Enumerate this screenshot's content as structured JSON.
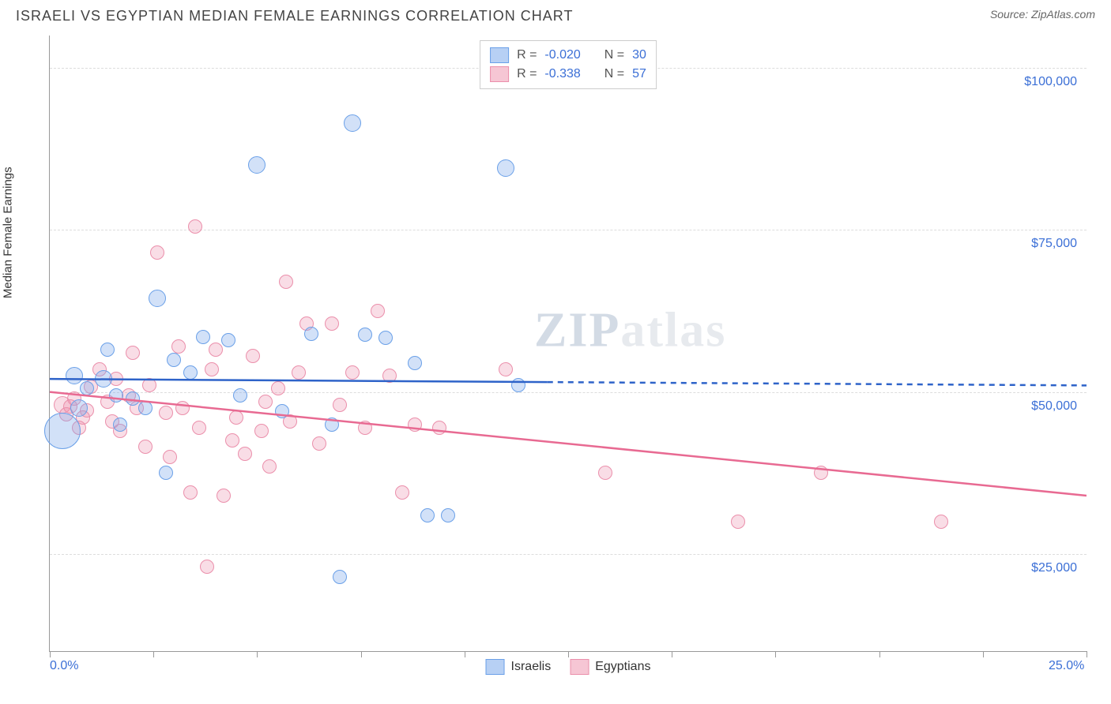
{
  "header": {
    "title": "ISRAELI VS EGYPTIAN MEDIAN FEMALE EARNINGS CORRELATION CHART",
    "source_prefix": "Source: ",
    "source_name": "ZipAtlas.com"
  },
  "chart": {
    "type": "scatter",
    "ylabel": "Median Female Earnings",
    "xlim": [
      0,
      25
    ],
    "ylim": [
      10000,
      105000
    ],
    "x_tick_positions": [
      0,
      2.5,
      5,
      7.5,
      10,
      12.5,
      15,
      17.5,
      20,
      22.5,
      25
    ],
    "x_tick_labels_shown": {
      "0": "0.0%",
      "25": "25.0%"
    },
    "y_grid": [
      25000,
      50000,
      75000,
      100000
    ],
    "y_grid_labels": [
      "$25,000",
      "$50,000",
      "$75,000",
      "$100,000"
    ],
    "grid_color": "#dddddd",
    "axis_color": "#999999",
    "background_color": "#ffffff",
    "label_fontsize": 15,
    "tick_fontsize": 16,
    "tick_color": "#3b6fd6",
    "watermark": {
      "zip": "ZIP",
      "atlas": "atlas"
    },
    "legend_top": {
      "series": [
        {
          "swatch_fill": "#b7d0f4",
          "swatch_stroke": "#6aa0e8",
          "r_label": "R =",
          "r_value": "-0.020",
          "n_label": "N =",
          "n_value": "30"
        },
        {
          "swatch_fill": "#f6c6d4",
          "swatch_stroke": "#eb8fab",
          "r_label": "R =",
          "r_value": "-0.338",
          "n_label": "N =",
          "n_value": "57"
        }
      ]
    },
    "legend_bottom": [
      {
        "swatch_fill": "#b7d0f4",
        "swatch_stroke": "#6aa0e8",
        "label": "Israelis"
      },
      {
        "swatch_fill": "#f6c6d4",
        "swatch_stroke": "#eb8fab",
        "label": "Egyptians"
      }
    ],
    "series": {
      "israelis": {
        "marker_fill": "rgba(125,170,235,0.35)",
        "marker_stroke": "#6aa0e8",
        "line_color": "#2e63c9",
        "line_width": 2.5,
        "line_dash_after_x": 12,
        "trend": {
          "y_at_xmin": 52000,
          "y_at_xmax": 51000
        },
        "points": [
          {
            "x": 0.3,
            "y": 44000,
            "r": 22
          },
          {
            "x": 0.6,
            "y": 52500,
            "r": 10
          },
          {
            "x": 0.7,
            "y": 47500,
            "r": 10
          },
          {
            "x": 0.9,
            "y": 50500,
            "r": 8
          },
          {
            "x": 1.3,
            "y": 52000,
            "r": 10
          },
          {
            "x": 1.4,
            "y": 56500,
            "r": 8
          },
          {
            "x": 1.6,
            "y": 49500,
            "r": 8
          },
          {
            "x": 1.7,
            "y": 45000,
            "r": 8
          },
          {
            "x": 2.0,
            "y": 49000,
            "r": 8
          },
          {
            "x": 2.3,
            "y": 47500,
            "r": 8
          },
          {
            "x": 2.6,
            "y": 64500,
            "r": 10
          },
          {
            "x": 2.8,
            "y": 37500,
            "r": 8
          },
          {
            "x": 3.0,
            "y": 55000,
            "r": 8
          },
          {
            "x": 3.4,
            "y": 53000,
            "r": 8
          },
          {
            "x": 3.7,
            "y": 58500,
            "r": 8
          },
          {
            "x": 4.3,
            "y": 58000,
            "r": 8
          },
          {
            "x": 4.6,
            "y": 49500,
            "r": 8
          },
          {
            "x": 5.0,
            "y": 85000,
            "r": 10
          },
          {
            "x": 5.6,
            "y": 47000,
            "r": 8
          },
          {
            "x": 6.3,
            "y": 59000,
            "r": 8
          },
          {
            "x": 6.8,
            "y": 45000,
            "r": 8
          },
          {
            "x": 7.0,
            "y": 21500,
            "r": 8
          },
          {
            "x": 7.3,
            "y": 91500,
            "r": 10
          },
          {
            "x": 7.6,
            "y": 58800,
            "r": 8
          },
          {
            "x": 8.1,
            "y": 58300,
            "r": 8
          },
          {
            "x": 8.8,
            "y": 54500,
            "r": 8
          },
          {
            "x": 9.1,
            "y": 31000,
            "r": 8
          },
          {
            "x": 9.6,
            "y": 31000,
            "r": 8
          },
          {
            "x": 11.0,
            "y": 84500,
            "r": 10
          },
          {
            "x": 11.3,
            "y": 51000,
            "r": 8
          }
        ]
      },
      "egyptians": {
        "marker_fill": "rgba(235,143,171,0.30)",
        "marker_stroke": "#eb8fab",
        "line_color": "#e86a92",
        "line_width": 2.5,
        "trend": {
          "y_at_xmin": 50000,
          "y_at_xmax": 34000
        },
        "points": [
          {
            "x": 0.3,
            "y": 48000,
            "r": 10
          },
          {
            "x": 0.4,
            "y": 46500,
            "r": 8
          },
          {
            "x": 0.5,
            "y": 47800,
            "r": 8
          },
          {
            "x": 0.6,
            "y": 49000,
            "r": 8
          },
          {
            "x": 0.7,
            "y": 44500,
            "r": 8
          },
          {
            "x": 0.8,
            "y": 46000,
            "r": 8
          },
          {
            "x": 0.9,
            "y": 47200,
            "r": 8
          },
          {
            "x": 1.0,
            "y": 50800,
            "r": 8
          },
          {
            "x": 1.2,
            "y": 53500,
            "r": 8
          },
          {
            "x": 1.4,
            "y": 48500,
            "r": 8
          },
          {
            "x": 1.5,
            "y": 45500,
            "r": 8
          },
          {
            "x": 1.6,
            "y": 52000,
            "r": 8
          },
          {
            "x": 1.7,
            "y": 44000,
            "r": 8
          },
          {
            "x": 1.9,
            "y": 49500,
            "r": 8
          },
          {
            "x": 2.0,
            "y": 56000,
            "r": 8
          },
          {
            "x": 2.1,
            "y": 47500,
            "r": 8
          },
          {
            "x": 2.3,
            "y": 41500,
            "r": 8
          },
          {
            "x": 2.4,
            "y": 51000,
            "r": 8
          },
          {
            "x": 2.6,
            "y": 71500,
            "r": 8
          },
          {
            "x": 2.8,
            "y": 46800,
            "r": 8
          },
          {
            "x": 2.9,
            "y": 40000,
            "r": 8
          },
          {
            "x": 3.1,
            "y": 57000,
            "r": 8
          },
          {
            "x": 3.2,
            "y": 47500,
            "r": 8
          },
          {
            "x": 3.4,
            "y": 34500,
            "r": 8
          },
          {
            "x": 3.5,
            "y": 75500,
            "r": 8
          },
          {
            "x": 3.6,
            "y": 44500,
            "r": 8
          },
          {
            "x": 3.8,
            "y": 23000,
            "r": 8
          },
          {
            "x": 3.9,
            "y": 53500,
            "r": 8
          },
          {
            "x": 4.0,
            "y": 56500,
            "r": 8
          },
          {
            "x": 4.2,
            "y": 34000,
            "r": 8
          },
          {
            "x": 4.4,
            "y": 42500,
            "r": 8
          },
          {
            "x": 4.5,
            "y": 46000,
            "r": 8
          },
          {
            "x": 4.7,
            "y": 40500,
            "r": 8
          },
          {
            "x": 4.9,
            "y": 55500,
            "r": 8
          },
          {
            "x": 5.1,
            "y": 44000,
            "r": 8
          },
          {
            "x": 5.2,
            "y": 48500,
            "r": 8
          },
          {
            "x": 5.3,
            "y": 38500,
            "r": 8
          },
          {
            "x": 5.5,
            "y": 50500,
            "r": 8
          },
          {
            "x": 5.7,
            "y": 67000,
            "r": 8
          },
          {
            "x": 5.8,
            "y": 45500,
            "r": 8
          },
          {
            "x": 6.0,
            "y": 53000,
            "r": 8
          },
          {
            "x": 6.2,
            "y": 60500,
            "r": 8
          },
          {
            "x": 6.5,
            "y": 42000,
            "r": 8
          },
          {
            "x": 6.8,
            "y": 60500,
            "r": 8
          },
          {
            "x": 7.0,
            "y": 48000,
            "r": 8
          },
          {
            "x": 7.3,
            "y": 53000,
            "r": 8
          },
          {
            "x": 7.6,
            "y": 44500,
            "r": 8
          },
          {
            "x": 7.9,
            "y": 62500,
            "r": 8
          },
          {
            "x": 8.2,
            "y": 52500,
            "r": 8
          },
          {
            "x": 8.5,
            "y": 34500,
            "r": 8
          },
          {
            "x": 8.8,
            "y": 45000,
            "r": 8
          },
          {
            "x": 9.4,
            "y": 44500,
            "r": 8
          },
          {
            "x": 11.0,
            "y": 53500,
            "r": 8
          },
          {
            "x": 13.4,
            "y": 37500,
            "r": 8
          },
          {
            "x": 16.6,
            "y": 30000,
            "r": 8
          },
          {
            "x": 18.6,
            "y": 37500,
            "r": 8
          },
          {
            "x": 21.5,
            "y": 30000,
            "r": 8
          }
        ]
      }
    }
  }
}
